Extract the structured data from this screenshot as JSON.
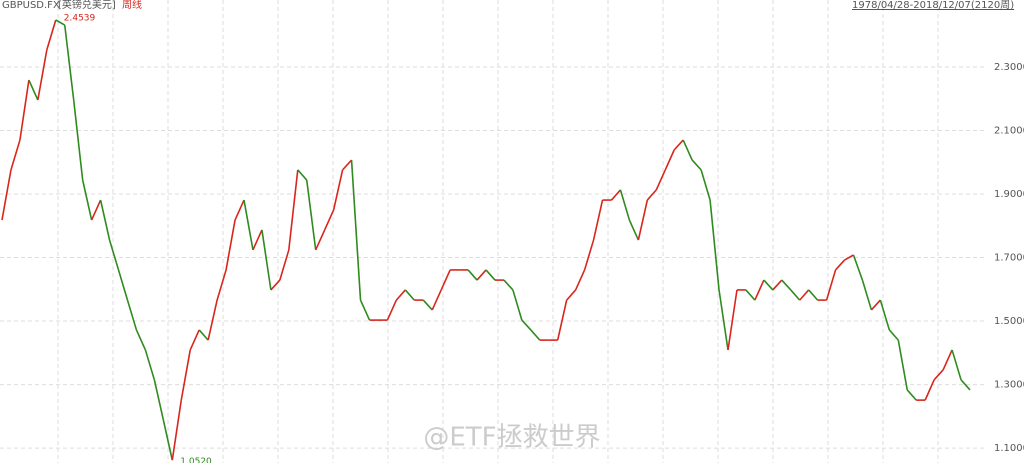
{
  "chart_data": {
    "type": "line",
    "symbol": "GBPUSD.FX",
    "name": "[英镑兑美元]",
    "period": "周线",
    "range": "1978/04/28-2018/12/07(2120周)",
    "watermark": "@ETF拯救世界",
    "max_label": 2.4539,
    "min_label": {
      "value": 1.052,
      "label": "1.0520"
    },
    "up_color": "#d9261c",
    "down_color": "#2e8b1e",
    "values": [
      1.818,
      1.976,
      2.07,
      2.259,
      2.196,
      2.354,
      2.448,
      2.432,
      2.196,
      1.944,
      1.818,
      1.881,
      1.755,
      1.661,
      1.566,
      1.472,
      1.409,
      1.315,
      1.189,
      1.062,
      1.251,
      1.409,
      1.472,
      1.44,
      1.566,
      1.661,
      1.818,
      1.881,
      1.724,
      1.787,
      1.598,
      1.629,
      1.724,
      1.976,
      1.944,
      1.724,
      1.787,
      1.85,
      1.976,
      2.007,
      1.566,
      1.503,
      1.503,
      1.503,
      1.566,
      1.598,
      1.566,
      1.566,
      1.535,
      1.598,
      1.661,
      1.661,
      1.661,
      1.629,
      1.661,
      1.629,
      1.629,
      1.598,
      1.503,
      1.472,
      1.44,
      1.44,
      1.44,
      1.566,
      1.598,
      1.661,
      1.755,
      1.881,
      1.881,
      1.913,
      1.818,
      1.755,
      1.881,
      1.913,
      1.976,
      2.039,
      2.07,
      2.007,
      1.976,
      1.881,
      1.598,
      1.409,
      1.598,
      1.598,
      1.566,
      1.629,
      1.598,
      1.629,
      1.598,
      1.566,
      1.598,
      1.566,
      1.566,
      1.661,
      1.692,
      1.708,
      1.629,
      1.535,
      1.566,
      1.472,
      1.44,
      1.283,
      1.251,
      1.251,
      1.315,
      1.346,
      1.409,
      1.315,
      1.283
    ],
    "ylim": [
      1.053,
      2.511
    ],
    "yticks": [
      {
        "value": 1.1,
        "label": "1.1000"
      },
      {
        "value": 1.3,
        "label": "1.3000"
      },
      {
        "value": 1.5,
        "label": "1.5000"
      },
      {
        "value": 1.7,
        "label": "1.7000"
      },
      {
        "value": 1.9,
        "label": "1.9000"
      },
      {
        "value": 2.1,
        "label": "2.1000"
      },
      {
        "value": 2.3,
        "label": "2.3000"
      }
    ],
    "grid": true
  }
}
